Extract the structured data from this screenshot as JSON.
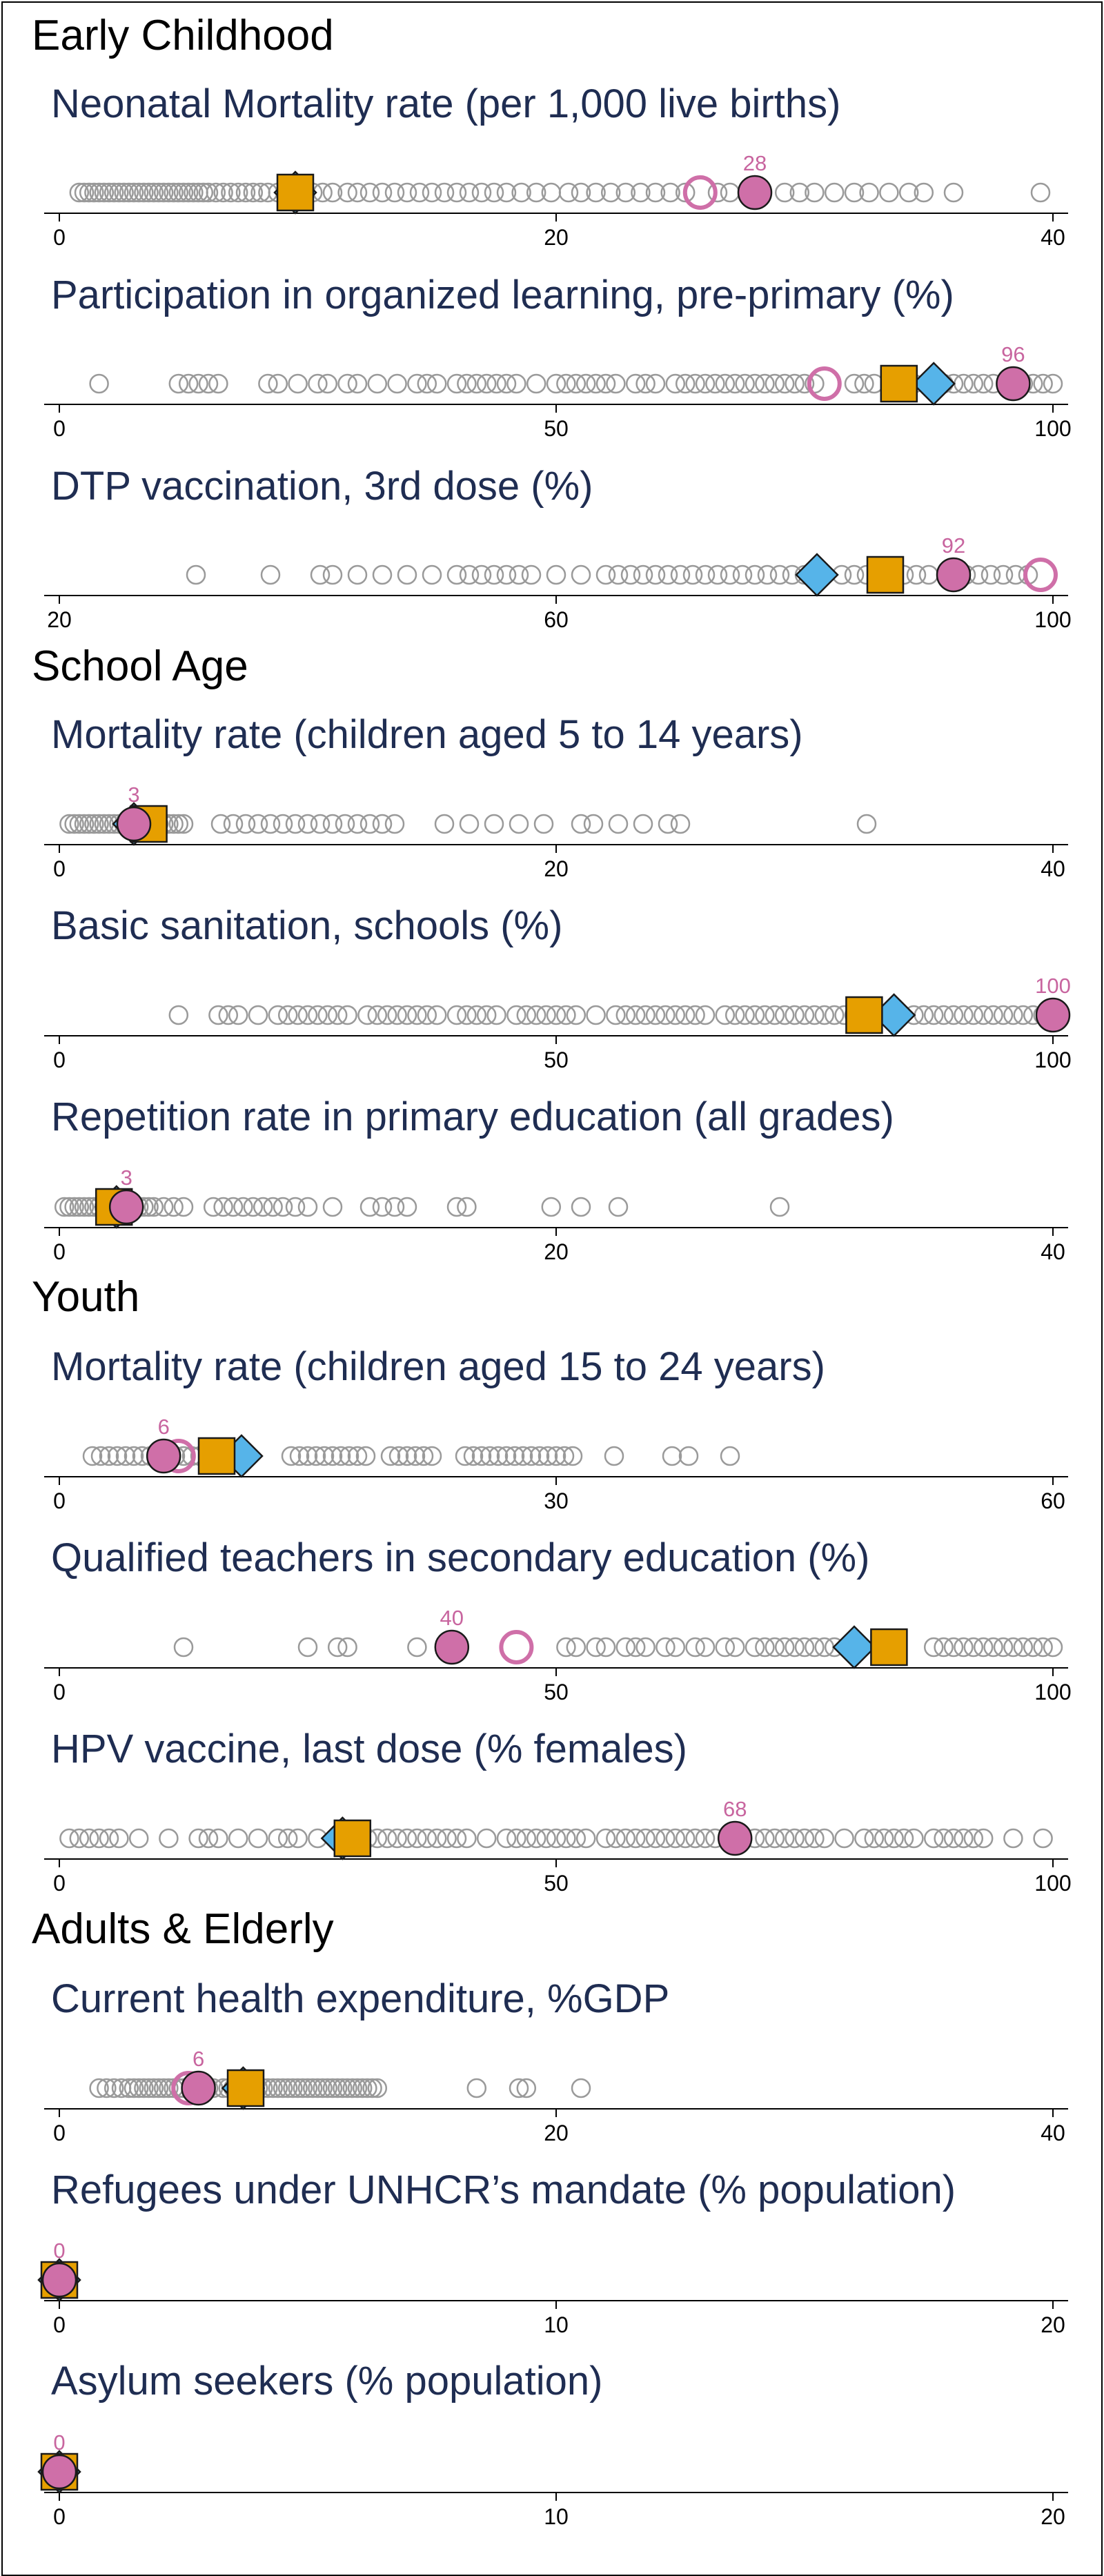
{
  "colors": {
    "title": "#1f2d52",
    "other_countries": "#9a9a9a",
    "country": "#cf6fa8",
    "country_stroke": "#1a1a1a",
    "region": "#56b4e9",
    "world": "#e69f00",
    "ring": "#cf6fa8"
  },
  "sections": [
    {
      "title": "Early Childhood"
    },
    {
      "title": "School Age"
    },
    {
      "title": "Youth"
    },
    {
      "title": "Adults & Elderly"
    }
  ],
  "chart_data": [
    {
      "type": "scatter",
      "section": 0,
      "title": "Neonatal Mortality rate (per 1,000 live births)",
      "xlim": [
        0,
        40
      ],
      "ticks": [
        0,
        20,
        40
      ],
      "label": "28",
      "country": 28,
      "ring": 25.8,
      "diamond": 9.5,
      "square": 9.5,
      "others": [
        0.8,
        1.0,
        1.2,
        1.4,
        1.6,
        1.8,
        2.0,
        2.2,
        2.4,
        2.6,
        2.8,
        3.0,
        3.2,
        3.4,
        3.6,
        3.8,
        4.0,
        4.2,
        4.4,
        4.6,
        4.8,
        5.0,
        5.2,
        5.4,
        5.6,
        5.8,
        6.0,
        6.3,
        6.6,
        6.9,
        7.2,
        7.5,
        7.8,
        8.1,
        8.4,
        8.8,
        9.2,
        10.2,
        10.6,
        11.0,
        11.6,
        12.0,
        12.5,
        13.0,
        13.5,
        14.0,
        14.5,
        15.0,
        15.5,
        16.0,
        16.5,
        17.0,
        17.5,
        18.0,
        18.6,
        19.2,
        19.8,
        20.5,
        21.0,
        21.6,
        22.2,
        22.8,
        23.4,
        24.0,
        24.6,
        25.2,
        26.5,
        27.0,
        29.2,
        29.8,
        30.4,
        31.2,
        32.0,
        32.6,
        33.4,
        34.2,
        34.8,
        36.0,
        39.5
      ]
    },
    {
      "type": "scatter",
      "section": 0,
      "title": "Participation in organized learning,  pre-primary (%)",
      "xlim": [
        0,
        100
      ],
      "ticks": [
        0,
        50,
        100
      ],
      "label": "96",
      "country": 96,
      "ring": 77,
      "diamond": 88,
      "square": 84.5,
      "others": [
        4,
        12,
        13,
        14,
        15,
        16,
        21,
        22,
        24,
        26,
        27,
        29,
        30,
        32,
        34,
        36,
        37,
        38,
        40,
        41,
        42,
        43,
        44,
        45,
        46,
        48,
        50,
        51,
        52,
        53,
        54,
        55,
        56,
        58,
        59,
        60,
        62,
        63,
        64,
        65,
        66,
        67,
        68,
        69,
        70,
        71,
        72,
        73,
        74,
        75,
        76,
        80,
        81,
        82,
        86,
        89,
        90,
        91,
        92,
        93,
        94,
        97,
        98,
        99,
        100
      ]
    },
    {
      "type": "scatter",
      "section": 0,
      "title": "DTP vaccination, 3rd dose (%)",
      "xlim": [
        20,
        100
      ],
      "ticks": [
        20,
        60,
        100
      ],
      "label": "92",
      "country": 92,
      "ring": 99,
      "diamond": 81,
      "square": 86.5,
      "others": [
        31,
        37,
        41,
        42,
        44,
        46,
        48,
        50,
        52,
        53,
        54,
        55,
        56,
        57,
        58,
        60,
        62,
        64,
        65,
        66,
        67,
        68,
        69,
        70,
        71,
        72,
        73,
        74,
        75,
        76,
        77,
        78,
        79,
        80,
        83,
        84,
        85,
        88,
        89,
        90,
        93,
        94,
        95,
        96,
        97,
        98
      ]
    },
    {
      "type": "scatter",
      "section": 1,
      "title": "Mortality rate (children aged 5 to 14 years)",
      "xlim": [
        0,
        40
      ],
      "ticks": [
        0,
        20,
        40
      ],
      "label": "3",
      "country": 3,
      "ring": 3.2,
      "diamond": 3,
      "square": 3.6,
      "others": [
        0.4,
        0.6,
        0.8,
        1.0,
        1.2,
        1.4,
        1.6,
        1.8,
        2.0,
        2.2,
        2.4,
        2.6,
        2.8,
        3.0,
        3.2,
        3.4,
        3.6,
        3.8,
        4.0,
        4.2,
        4.4,
        4.6,
        4.8,
        5.0,
        6.5,
        7.0,
        7.5,
        8.0,
        8.5,
        9.0,
        9.5,
        10.0,
        10.5,
        11.0,
        11.5,
        12.0,
        12.5,
        13.0,
        13.5,
        15.5,
        16.5,
        17.5,
        18.5,
        19.5,
        21.0,
        21.5,
        22.5,
        23.5,
        24.5,
        25.0,
        32.5
      ]
    },
    {
      "type": "scatter",
      "section": 1,
      "title": "Basic sanitation, schools (%)",
      "xlim": [
        0,
        100
      ],
      "ticks": [
        0,
        50,
        100
      ],
      "label": "100",
      "country": 100,
      "ring": null,
      "diamond": 84,
      "square": 81,
      "others": [
        12,
        16,
        17,
        18,
        20,
        22,
        23,
        24,
        25,
        26,
        27,
        28,
        29,
        31,
        32,
        33,
        34,
        35,
        36,
        37,
        38,
        40,
        41,
        42,
        43,
        44,
        46,
        47,
        48,
        49,
        50,
        51,
        52,
        54,
        56,
        57,
        58,
        59,
        60,
        61,
        62,
        63,
        64,
        65,
        67,
        68,
        69,
        70,
        71,
        72,
        73,
        74,
        75,
        76,
        77,
        78,
        79,
        80,
        86,
        87,
        88,
        89,
        90,
        91,
        92,
        93,
        94,
        95,
        96,
        97,
        98,
        99
      ]
    },
    {
      "type": "scatter",
      "section": 1,
      "title": "Repetition rate in primary education (all grades)",
      "xlim": [
        0,
        40
      ],
      "ticks": [
        0,
        20,
        40
      ],
      "label": "3",
      "country": 2.7,
      "ring": null,
      "diamond": 2.3,
      "square": 2.2,
      "others": [
        0.2,
        0.4,
        0.6,
        0.8,
        1.0,
        1.2,
        1.4,
        1.6,
        1.8,
        2.0,
        2.2,
        2.4,
        2.6,
        2.8,
        3.0,
        3.2,
        3.4,
        3.6,
        3.8,
        4.2,
        4.6,
        5.0,
        6.2,
        6.6,
        7.0,
        7.4,
        7.8,
        8.2,
        8.6,
        9.0,
        9.5,
        10.0,
        11.0,
        12.5,
        13.0,
        13.5,
        14.0,
        16.0,
        16.4,
        19.8,
        21.0,
        22.5,
        29.0
      ]
    },
    {
      "type": "scatter",
      "section": 2,
      "title": "Mortality rate (children aged 15 to 24 years)",
      "xlim": [
        0,
        60
      ],
      "ticks": [
        0,
        30,
        60
      ],
      "label": "6",
      "country": 6.3,
      "ring": 7.2,
      "diamond": 11,
      "square": 9.5,
      "others": [
        2.0,
        2.5,
        3.0,
        3.5,
        4.0,
        4.5,
        5.0,
        5.5,
        6.0,
        6.5,
        7.0,
        7.5,
        8.0,
        8.5,
        9.0,
        9.5,
        10.0,
        10.5,
        11.0,
        14.0,
        14.5,
        15.0,
        15.5,
        16.0,
        16.5,
        17.0,
        17.5,
        18.0,
        18.5,
        20.0,
        20.5,
        21.0,
        21.5,
        22.0,
        22.5,
        24.5,
        25.0,
        25.5,
        26.0,
        26.5,
        27.0,
        27.5,
        28.0,
        28.5,
        29.0,
        29.5,
        30.0,
        30.5,
        31.0,
        33.5,
        37.0,
        38.0,
        40.5
      ]
    },
    {
      "type": "scatter",
      "section": 2,
      "title": "Qualified teachers in secondary education (%)",
      "xlim": [
        0,
        100
      ],
      "ticks": [
        0,
        50,
        100
      ],
      "label": "40",
      "country": 39.5,
      "ring": 46,
      "diamond": 80,
      "square": 83.5,
      "others": [
        12.5,
        25,
        28,
        29,
        36,
        51,
        52,
        54,
        55,
        57,
        58,
        59,
        61,
        62,
        64,
        65,
        67,
        68,
        70,
        71,
        72,
        73,
        74,
        75,
        76,
        77,
        78,
        88,
        89,
        90,
        91,
        92,
        93,
        94,
        95,
        96,
        97,
        98,
        99,
        100
      ]
    },
    {
      "type": "scatter",
      "section": 2,
      "title": "HPV vaccine, last dose (% females)",
      "xlim": [
        0,
        100
      ],
      "ticks": [
        0,
        50,
        100
      ],
      "label": "68",
      "country": 68,
      "ring": null,
      "diamond": 28.5,
      "square": 29.5,
      "others": [
        1,
        2,
        3,
        4,
        5,
        6,
        8,
        11,
        14,
        15,
        16,
        18,
        20,
        22,
        23,
        24,
        26,
        30,
        31,
        32,
        33,
        34,
        35,
        36,
        37,
        38,
        39,
        40,
        41,
        43,
        45,
        46,
        47,
        48,
        49,
        50,
        51,
        52,
        53,
        55,
        56,
        57,
        58,
        59,
        60,
        61,
        62,
        63,
        64,
        65,
        66,
        70,
        71,
        72,
        73,
        74,
        75,
        76,
        77,
        79,
        81,
        82,
        83,
        84,
        85,
        86,
        88,
        89,
        90,
        91,
        92,
        93,
        96,
        99
      ]
    },
    {
      "type": "scatter",
      "section": 3,
      "title": "Current health expenditure, %GDP",
      "xlim": [
        0,
        40
      ],
      "ticks": [
        0,
        20,
        40
      ],
      "label": "6",
      "country": 5.6,
      "ring": 5.2,
      "diamond": 7.4,
      "square": 7.5,
      "others": [
        1.6,
        1.9,
        2.2,
        2.5,
        2.8,
        3.0,
        3.2,
        3.4,
        3.6,
        3.8,
        4.0,
        4.2,
        4.4,
        4.6,
        4.8,
        5.0,
        5.4,
        5.8,
        6.0,
        6.2,
        6.6,
        6.8,
        7.0,
        7.2,
        7.6,
        7.8,
        8.0,
        8.2,
        8.4,
        8.6,
        8.8,
        9.0,
        9.2,
        9.4,
        9.6,
        9.8,
        10.0,
        10.2,
        10.4,
        10.6,
        10.8,
        11.0,
        11.2,
        11.4,
        11.6,
        11.8,
        12.0,
        12.2,
        12.4,
        12.6,
        12.8,
        16.8,
        18.5,
        18.8,
        21.0
      ]
    },
    {
      "type": "scatter",
      "section": 3,
      "title": "Refugees under UNHCR’s mandate (% population)",
      "xlim": [
        0,
        20
      ],
      "ticks": [
        0,
        10,
        20
      ],
      "label": "0",
      "country": 0,
      "ring": null,
      "diamond": 0,
      "square": 0,
      "others": []
    },
    {
      "type": "scatter",
      "section": 3,
      "title": "Asylum seekers (% population)",
      "xlim": [
        0,
        20
      ],
      "ticks": [
        0,
        10,
        20
      ],
      "label": "0",
      "country": 0,
      "ring": null,
      "diamond": 0,
      "square": 0,
      "others": []
    }
  ]
}
